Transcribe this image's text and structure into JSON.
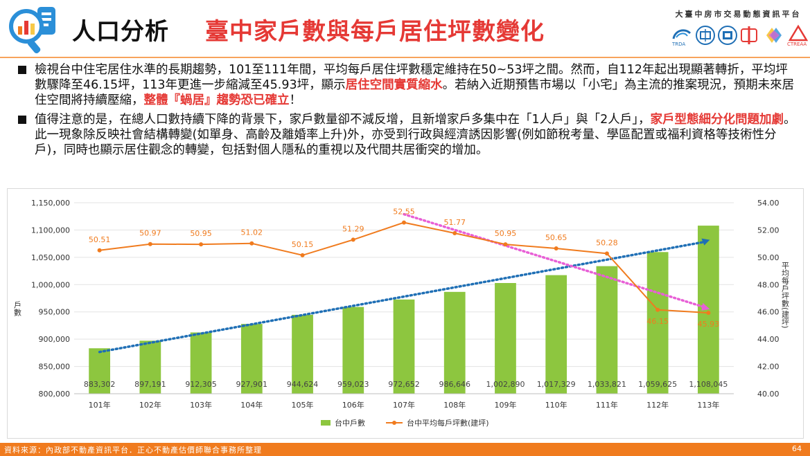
{
  "header": {
    "title_main": "人口分析",
    "title_sub": "臺中家戶數與每戶居住坪數變化",
    "platform": "大臺中房市交易動態資訊平台",
    "partner_logos": [
      "TRDA",
      "tcapa-logo",
      "tca-logo",
      "中字-logo",
      "colorful-logo",
      "CTREAA"
    ]
  },
  "bullets": [
    {
      "parts": [
        {
          "text": "檢視台中住宅居住水準的長期趨勢，101至111年間，平均每戶居住坪數穩定維持在50~53坪之間。然而，自112年起出現顯著轉折，平均坪數驟降至46.15坪，113年更進一步縮減至45.93坪，顯示",
          "red": false
        },
        {
          "text": "居住空間實質縮水",
          "red": true
        },
        {
          "text": "。若納入近期預售市場以「小宅」為主流的推案現況，預期未來居住空間將持續壓縮，",
          "red": false
        },
        {
          "text": "整體『蝸居』趨勢恐已確立",
          "red": true
        },
        {
          "text": "！",
          "red": false
        }
      ]
    },
    {
      "parts": [
        {
          "text": "值得注意的是，在總人口數持續下降的背景下，家戶數量卻不減反增，且新增家戶多集中在「1人戶」與「2人戶」，",
          "red": false
        },
        {
          "text": "家戶型態細分化問題加劇",
          "red": true
        },
        {
          "text": "。此一現象除反映社會結構轉變(如單身、高齡及離婚率上升)外，亦受到行政與經濟誘因影響(例如節稅考量、學區配置或福利資格等技術性分戶)，同時也顯示居住觀念的轉變，包括對個人隱私的重視以及代間共居衝突的增加。",
          "red": false
        }
      ]
    }
  ],
  "chart_data": {
    "type": "bar+line",
    "categories": [
      "101年",
      "102年",
      "103年",
      "104年",
      "105年",
      "106年",
      "107年",
      "108年",
      "109年",
      "110年",
      "111年",
      "112年",
      "113年"
    ],
    "series": [
      {
        "name": "台中戶數",
        "type": "bar",
        "axis": "left",
        "color": "#8dc63f",
        "values": [
          883302,
          897191,
          912305,
          927901,
          944624,
          959023,
          972652,
          986646,
          1002890,
          1017329,
          1033821,
          1059625,
          1108045
        ],
        "labels": [
          "883,302",
          "897,191",
          "912,305",
          "927,901",
          "944,624",
          "959,023",
          "972,652",
          "986,646",
          "1,002,890",
          "1,017,329",
          "1,033,821",
          "1,059,625",
          "1,108,045"
        ]
      },
      {
        "name": "台中平均每戶坪數(建坪)",
        "type": "line",
        "axis": "right",
        "color": "#f07b1e",
        "values": [
          50.51,
          50.97,
          50.95,
          51.02,
          50.15,
          51.29,
          52.55,
          51.77,
          50.95,
          50.65,
          50.28,
          46.15,
          45.93
        ],
        "labels": [
          "50.51",
          "50.97",
          "50.95",
          "51.02",
          "50.15",
          "51.29",
          "52.55",
          "51.77",
          "50.95",
          "50.65",
          "50.28",
          "46.15",
          "45.93"
        ]
      }
    ],
    "trendlines": [
      {
        "series": "台中戶數",
        "color": "#1f6fb5",
        "style": "dotted",
        "from_index": 0,
        "to_index": 12
      },
      {
        "series": "台中平均每戶坪數(建坪)",
        "color": "#e85fd6",
        "style": "dotted",
        "from_index": 6,
        "to_index": 12
      }
    ],
    "left_axis": {
      "label": "戶數",
      "min": 800000,
      "max": 1150000,
      "ticks": [
        800000,
        850000,
        900000,
        950000,
        1000000,
        1050000,
        1100000,
        1150000
      ],
      "tick_labels": [
        "800,000",
        "850,000",
        "900,000",
        "950,000",
        "1,000,000",
        "1,050,000",
        "1,100,000",
        "1,150,000"
      ]
    },
    "right_axis": {
      "label": "平均每戶坪數(建坪)",
      "min": 40,
      "max": 54,
      "ticks": [
        40,
        42,
        44,
        46,
        48,
        50,
        52,
        54
      ],
      "tick_labels": [
        "40.00",
        "42.00",
        "44.00",
        "46.00",
        "48.00",
        "50.00",
        "52.00",
        "54.00"
      ]
    },
    "legend": [
      "台中戶數",
      "台中平均每戶坪數(建坪)"
    ],
    "legend_position": "bottom",
    "grid": true
  },
  "footer": {
    "source": "資料來源：內政部不動產資訊平台．正心不動產估價師聯合事務所整理",
    "page": "64"
  },
  "colors": {
    "accent": "#f07b1e",
    "title_red": "#e53935",
    "bar": "#8dc63f",
    "line": "#f07b1e",
    "trend_blue": "#1f6fb5",
    "trend_pink": "#e85fd6"
  }
}
